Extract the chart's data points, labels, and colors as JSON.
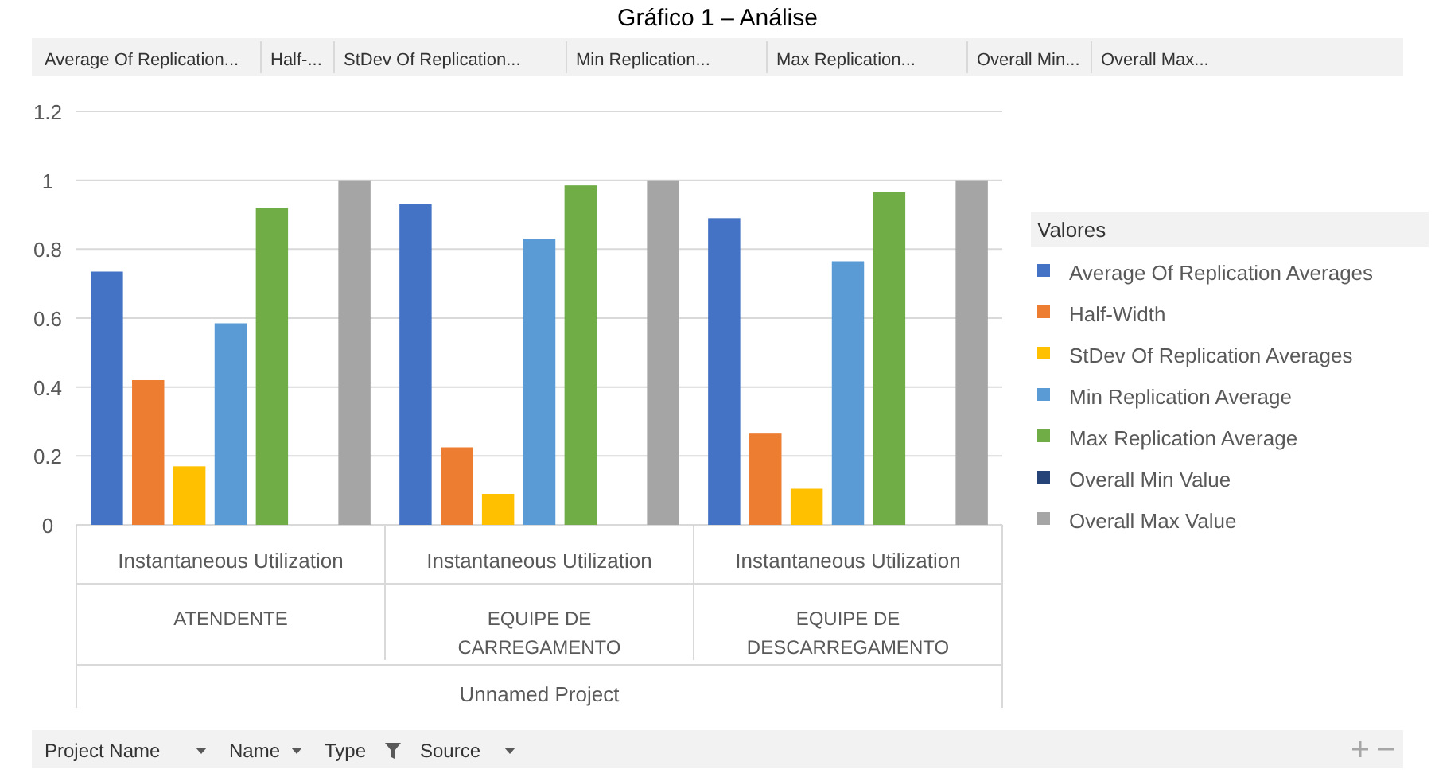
{
  "chart_data": {
    "type": "bar",
    "title": "Gráfico 1 – Análise",
    "categories": [
      "Instantaneous Utilization\nATENDENTE",
      "Instantaneous Utilization\nEQUIPE DE\nCARREGAMENTO",
      "Instantaneous Utilization\nEQUIPE DE\nDESCARREGAMENTO"
    ],
    "series": [
      {
        "name": "Average Of Replication Averages",
        "color": "#4472c4",
        "values": [
          0.735,
          0.93,
          0.89
        ]
      },
      {
        "name": "Half-Width",
        "color": "#ed7d31",
        "values": [
          0.42,
          0.225,
          0.265
        ]
      },
      {
        "name": "StDev Of Replication Averages",
        "color": "#ffc000",
        "values": [
          0.17,
          0.09,
          0.105
        ]
      },
      {
        "name": "Min Replication Average",
        "color": "#5b9bd5",
        "values": [
          0.585,
          0.83,
          0.765
        ]
      },
      {
        "name": "Max Replication Average",
        "color": "#70ad47",
        "values": [
          0.92,
          0.985,
          0.965
        ]
      },
      {
        "name": "Overall Min Value",
        "color": "#264478",
        "values": [
          0,
          0,
          0
        ]
      },
      {
        "name": "Overall Max Value",
        "color": "#a5a5a5",
        "values": [
          1,
          1,
          1
        ]
      }
    ],
    "ylim": [
      0,
      1.2
    ],
    "yticks": [
      0,
      {
        "value": 0.2,
        "label": "0.2"
      },
      {
        "value": 0.4,
        "label": "0.4"
      },
      {
        "value": 0.6,
        "label": "0.6"
      },
      {
        "value": 0.8,
        "label": "0.8"
      },
      1,
      {
        "value": 1.2,
        "label": "1.2"
      }
    ],
    "grid": "y",
    "legend": "right",
    "legend_title": "Valores",
    "annotations": [
      "Average Of Replication...",
      "Half-...",
      "StDev Of Replication...",
      "Min Replication...",
      "Max Replication...",
      "Overall Min...",
      "Overall Max...",
      "Unnamed Project",
      "Project Name",
      "Name",
      "Type",
      "Source"
    ]
  }
}
